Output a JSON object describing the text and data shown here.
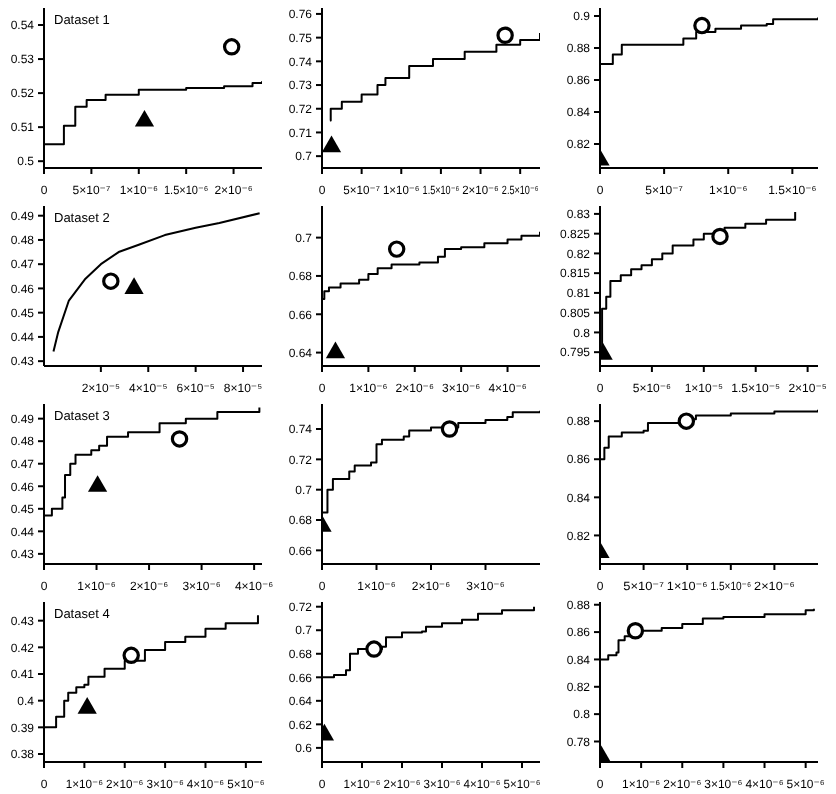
{
  "chart_data": [
    {
      "type": "line",
      "annotations": [
        "Dataset 1"
      ],
      "xlim": [
        0,
        2.3e-06
      ],
      "xticks": [
        {
          "value": 0,
          "label": "0"
        },
        {
          "value": 5e-07,
          "label": "5×10⁻⁷"
        },
        {
          "value": 1e-06,
          "label": "1×10⁻⁶"
        },
        {
          "value": 1.5e-06,
          "label": "1.5×10⁻⁶"
        },
        {
          "value": 2e-06,
          "label": "2×10⁻⁶"
        }
      ],
      "ylim": [
        0.498,
        0.545
      ],
      "yticks": [
        0.5,
        0.51,
        0.52,
        0.53,
        0.54
      ],
      "series": [
        {
          "type": "step",
          "color": "#000000",
          "marker": "none",
          "x": [
            0,
            2.1e-07,
            3.3e-07,
            4.5e-07,
            6.5e-07,
            1e-06,
            1.5e-06,
            1.9e-06,
            2.2e-06,
            2.3e-06
          ],
          "values": [
            0.505,
            0.5104,
            0.516,
            0.518,
            0.5195,
            0.521,
            0.5215,
            0.522,
            0.523,
            0.5235
          ]
        },
        {
          "type": "scatter",
          "color": "#000000",
          "marker": "circle",
          "x": [
            1.98e-06
          ],
          "values": [
            0.5336
          ]
        },
        {
          "type": "scatter",
          "color": "#000000",
          "marker": "triangle",
          "x": [
            1.06e-06
          ],
          "values": [
            0.5118
          ]
        }
      ]
    },
    {
      "type": "line",
      "xlim": [
        0,
        2.75e-06
      ],
      "xticks": [
        {
          "value": 0,
          "label": "0"
        },
        {
          "value": 5e-07,
          "label": "5×10⁻⁷"
        },
        {
          "value": 1e-06,
          "label": "1×10⁻⁶"
        },
        {
          "value": 1.5e-06,
          "label": "1.5×10⁻⁶"
        },
        {
          "value": 2e-06,
          "label": "2×10⁻⁶"
        },
        {
          "value": 2.5e-06,
          "label": "2.5×10⁻⁶"
        }
      ],
      "ylim": [
        0.695,
        0.7625
      ],
      "yticks": [
        0.7,
        0.71,
        0.72,
        0.73,
        0.74,
        0.75,
        0.76
      ],
      "series": [
        {
          "type": "step",
          "color": "#000000",
          "marker": "none",
          "x": [
            1e-07,
            1.1e-07,
            2.5e-07,
            5e-07,
            7e-07,
            8e-07,
            1.1e-06,
            1.4e-06,
            1.8e-06,
            2.2e-06,
            2.5e-06,
            2.75e-06
          ],
          "values": [
            0.715,
            0.72,
            0.723,
            0.726,
            0.73,
            0.733,
            0.738,
            0.741,
            0.744,
            0.747,
            0.749,
            0.752
          ]
        },
        {
          "type": "scatter",
          "color": "#000000",
          "marker": "circle",
          "x": [
            2.31e-06
          ],
          "values": [
            0.751
          ]
        },
        {
          "type": "scatter",
          "color": "#000000",
          "marker": "triangle",
          "x": [
            1.2e-07
          ],
          "values": [
            0.704
          ]
        }
      ]
    },
    {
      "type": "line",
      "xlim": [
        0,
        1.7e-06
      ],
      "xticks": [
        {
          "value": 0,
          "label": "0"
        },
        {
          "value": 5e-07,
          "label": "5×10⁻⁷"
        },
        {
          "value": 1e-06,
          "label": "1×10⁻⁶"
        },
        {
          "value": 1.5e-06,
          "label": "1.5×10⁻⁶"
        }
      ],
      "ylim": [
        0.805,
        0.905
      ],
      "yticks": [
        0.82,
        0.84,
        0.86,
        0.88,
        0.9
      ],
      "series": [
        {
          "type": "step",
          "color": "#000000",
          "marker": "none",
          "x": [
            0,
            1e-07,
            1.7e-07,
            6.5e-07,
            7.5e-07,
            9e-07,
            1.1e-06,
            1.3e-06,
            1.35e-06,
            1.7e-06
          ],
          "values": [
            0.87,
            0.876,
            0.882,
            0.886,
            0.89,
            0.892,
            0.894,
            0.895,
            0.898,
            0.899
          ]
        },
        {
          "type": "scatter",
          "color": "#000000",
          "marker": "circle",
          "x": [
            7.95e-07
          ],
          "values": [
            0.894
          ]
        },
        {
          "type": "scatter",
          "color": "#000000",
          "marker": "triangle",
          "x": [
            0
          ],
          "values": [
            0.81
          ]
        }
      ]
    },
    {
      "type": "line",
      "annotations": [
        "Dataset 2"
      ],
      "xlim": [
        -4e-06,
        8.8e-05
      ],
      "xticks": [
        {
          "value": 2e-05,
          "label": "2×10⁻⁵"
        },
        {
          "value": 4e-05,
          "label": "4×10⁻⁵"
        },
        {
          "value": 6e-05,
          "label": "6×10⁻⁵"
        },
        {
          "value": 8e-05,
          "label": "8×10⁻⁵"
        }
      ],
      "ylim": [
        0.428,
        0.494
      ],
      "yticks": [
        0.43,
        0.44,
        0.45,
        0.46,
        0.47,
        0.48,
        0.49
      ],
      "series": [
        {
          "type": "line",
          "color": "#000000",
          "marker": "none",
          "x": [
            0,
            2e-06,
            6.5e-06,
            1.35e-05,
            2e-05,
            2.75e-05,
            3.6e-05,
            4.7e-05,
            6e-05,
            7e-05,
            8.7e-05
          ],
          "values": [
            0.434,
            0.442,
            0.455,
            0.464,
            0.47,
            0.475,
            0.478,
            0.482,
            0.485,
            0.487,
            0.491
          ]
        },
        {
          "type": "scatter",
          "color": "#000000",
          "marker": "circle",
          "x": [
            2.42e-05
          ],
          "values": [
            0.463
          ]
        },
        {
          "type": "scatter",
          "color": "#000000",
          "marker": "triangle",
          "x": [
            3.4e-05
          ],
          "values": [
            0.46
          ]
        }
      ]
    },
    {
      "type": "line",
      "xlim": [
        0,
        4.7e-06
      ],
      "xticks": [
        {
          "value": 0,
          "label": "0"
        },
        {
          "value": 1e-06,
          "label": "1×10⁻⁶"
        },
        {
          "value": 2e-06,
          "label": "2×10⁻⁶"
        },
        {
          "value": 3e-06,
          "label": "3×10⁻⁶"
        },
        {
          "value": 4e-06,
          "label": "4×10⁻⁶"
        }
      ],
      "ylim": [
        0.633,
        0.7165
      ],
      "yticks": [
        0.64,
        0.66,
        0.68,
        0.7
      ],
      "series": [
        {
          "type": "step",
          "color": "#000000",
          "marker": "none",
          "x": [
            0,
            5e-08,
            1.5e-07,
            4e-07,
            8e-07,
            1e-06,
            1.2e-06,
            1.5e-06,
            2.1e-06,
            2.5e-06,
            2.65e-06,
            3e-06,
            3.5e-06,
            4e-06,
            4.3e-06,
            4.7e-06
          ],
          "values": [
            0.668,
            0.672,
            0.674,
            0.676,
            0.678,
            0.681,
            0.684,
            0.686,
            0.687,
            0.69,
            0.694,
            0.695,
            0.697,
            0.699,
            0.701,
            0.703
          ]
        },
        {
          "type": "scatter",
          "color": "#000000",
          "marker": "circle",
          "x": [
            1.61e-06
          ],
          "values": [
            0.694
          ]
        },
        {
          "type": "scatter",
          "color": "#000000",
          "marker": "triangle",
          "x": [
            2.9e-07
          ],
          "values": [
            0.64
          ]
        }
      ]
    },
    {
      "type": "line",
      "xlim": [
        0,
        2.1e-05
      ],
      "xticks": [
        {
          "value": 0,
          "label": "0"
        },
        {
          "value": 5e-06,
          "label": "5×10⁻⁶"
        },
        {
          "value": 1e-05,
          "label": "1×10⁻⁵"
        },
        {
          "value": 1.5e-05,
          "label": "1.5×10⁻⁵"
        },
        {
          "value": 2e-05,
          "label": "2×10⁻⁵"
        }
      ],
      "ylim": [
        0.7915,
        0.832
      ],
      "yticks": [
        0.795,
        0.8,
        0.805,
        0.81,
        0.815,
        0.82,
        0.825,
        0.83
      ],
      "series": [
        {
          "type": "step",
          "color": "#000000",
          "marker": "none",
          "x": [
            0,
            2e-07,
            6e-07,
            1e-06,
            2e-06,
            3e-06,
            4e-06,
            5e-06,
            6e-06,
            7e-06,
            9e-06,
            1e-05,
            1.2e-05,
            1.4e-05,
            1.6e-05,
            1.88e-05
          ],
          "values": [
            0.794,
            0.806,
            0.809,
            0.813,
            0.8145,
            0.816,
            0.817,
            0.8185,
            0.82,
            0.822,
            0.8235,
            0.825,
            0.8265,
            0.8275,
            0.8285,
            0.8305
          ]
        },
        {
          "type": "scatter",
          "color": "#000000",
          "marker": "circle",
          "x": [
            1.156e-05
          ],
          "values": [
            0.8243
          ]
        },
        {
          "type": "scatter",
          "color": "#000000",
          "marker": "triangle",
          "x": [
            3e-07
          ],
          "values": [
            0.7945
          ]
        }
      ]
    },
    {
      "type": "line",
      "annotations": [
        "Dataset 3"
      ],
      "xlim": [
        0,
        4.15e-06
      ],
      "xticks": [
        {
          "value": 0,
          "label": "0"
        },
        {
          "value": 1e-06,
          "label": "1×10⁻⁶"
        },
        {
          "value": 2e-06,
          "label": "2×10⁻⁶"
        },
        {
          "value": 3e-06,
          "label": "3×10⁻⁶"
        },
        {
          "value": 4e-06,
          "label": "4×10⁻⁶"
        }
      ],
      "ylim": [
        0.4255,
        0.4965
      ],
      "yticks": [
        0.43,
        0.44,
        0.45,
        0.46,
        0.47,
        0.48,
        0.49
      ],
      "series": [
        {
          "type": "step",
          "color": "#000000",
          "marker": "none",
          "x": [
            0,
            1.5e-07,
            3.5e-07,
            4e-07,
            5e-07,
            6e-07,
            9e-07,
            1.05e-06,
            1.2e-06,
            1.6e-06,
            2.2e-06,
            2.7e-06,
            3.3e-06,
            4.1e-06
          ],
          "values": [
            0.447,
            0.45,
            0.455,
            0.465,
            0.47,
            0.474,
            0.476,
            0.478,
            0.482,
            0.484,
            0.488,
            0.49,
            0.493,
            0.495
          ]
        },
        {
          "type": "scatter",
          "color": "#000000",
          "marker": "circle",
          "x": [
            2.58e-06
          ],
          "values": [
            0.481
          ]
        },
        {
          "type": "scatter",
          "color": "#000000",
          "marker": "triangle",
          "x": [
            1.02e-06
          ],
          "values": [
            0.46
          ]
        }
      ]
    },
    {
      "type": "line",
      "xlim": [
        0,
        4e-06
      ],
      "xticks": [
        {
          "value": 0,
          "label": "0"
        },
        {
          "value": 1e-06,
          "label": "1×10⁻⁶"
        },
        {
          "value": 2e-06,
          "label": "2×10⁻⁶"
        },
        {
          "value": 3e-06,
          "label": "3×10⁻⁶"
        }
      ],
      "ylim": [
        0.651,
        0.7565
      ],
      "yticks": [
        0.66,
        0.68,
        0.7,
        0.72,
        0.74
      ],
      "series": [
        {
          "type": "step",
          "color": "#000000",
          "marker": "none",
          "x": [
            0,
            1e-07,
            2e-07,
            5e-07,
            6e-07,
            9e-07,
            1e-06,
            1.1e-06,
            1.5e-06,
            1.6e-06,
            2e-06,
            2.5e-06,
            3e-06,
            3.4e-06,
            3.5e-06,
            4e-06
          ],
          "values": [
            0.685,
            0.7,
            0.707,
            0.712,
            0.716,
            0.718,
            0.73,
            0.733,
            0.735,
            0.739,
            0.741,
            0.744,
            0.746,
            0.748,
            0.751,
            0.752
          ]
        },
        {
          "type": "scatter",
          "color": "#000000",
          "marker": "circle",
          "x": [
            2.34e-06
          ],
          "values": [
            0.74
          ]
        },
        {
          "type": "scatter",
          "color": "#000000",
          "marker": "triangle",
          "x": [
            0
          ],
          "values": [
            0.676
          ]
        }
      ]
    },
    {
      "type": "line",
      "xlim": [
        0,
        2.5e-06
      ],
      "xticks": [
        {
          "value": 0,
          "label": "0"
        },
        {
          "value": 5e-07,
          "label": "5×10⁻⁷"
        },
        {
          "value": 1e-06,
          "label": "1×10⁻⁶"
        },
        {
          "value": 1.5e-06,
          "label": "1.5×10⁻⁶"
        },
        {
          "value": 2e-06,
          "label": "2×10⁻⁶"
        }
      ],
      "ylim": [
        0.805,
        0.889
      ],
      "yticks": [
        0.82,
        0.84,
        0.86,
        0.88
      ],
      "series": [
        {
          "type": "step",
          "color": "#000000",
          "marker": "none",
          "x": [
            0,
            5e-08,
            1e-07,
            2.5e-07,
            5e-07,
            5.5e-07,
            1e-06,
            1.1e-06,
            1.5e-06,
            2e-06,
            2.5e-06
          ],
          "values": [
            0.86,
            0.866,
            0.872,
            0.874,
            0.875,
            0.879,
            0.881,
            0.883,
            0.884,
            0.885,
            0.886
          ]
        },
        {
          "type": "scatter",
          "color": "#000000",
          "marker": "circle",
          "x": [
            9.9e-07
          ],
          "values": [
            0.88
          ]
        },
        {
          "type": "scatter",
          "color": "#000000",
          "marker": "triangle",
          "x": [
            0
          ],
          "values": [
            0.811
          ]
        }
      ]
    },
    {
      "type": "line",
      "annotations": [
        "Dataset 4"
      ],
      "xlim": [
        0,
        5.4e-06
      ],
      "xticks": [
        {
          "value": 0,
          "label": "0"
        },
        {
          "value": 1e-06,
          "label": "1×10⁻⁶"
        },
        {
          "value": 2e-06,
          "label": "2×10⁻⁶"
        },
        {
          "value": 3e-06,
          "label": "3×10⁻⁶"
        },
        {
          "value": 4e-06,
          "label": "4×10⁻⁶"
        },
        {
          "value": 5e-06,
          "label": "5×10⁻⁶"
        }
      ],
      "ylim": [
        0.377,
        0.437
      ],
      "yticks": [
        0.38,
        0.39,
        0.4,
        0.41,
        0.42,
        0.43
      ],
      "series": [
        {
          "type": "step",
          "color": "#000000",
          "marker": "none",
          "x": [
            0,
            1e-07,
            3e-07,
            5e-07,
            6e-07,
            8e-07,
            1e-06,
            1.1e-06,
            1.5e-06,
            2e-06,
            2.5e-06,
            3e-06,
            3.5e-06,
            4e-06,
            4.5e-06,
            5.3e-06
          ],
          "values": [
            0.39,
            0.39,
            0.394,
            0.4,
            0.403,
            0.405,
            0.406,
            0.409,
            0.412,
            0.415,
            0.419,
            0.422,
            0.424,
            0.427,
            0.429,
            0.432
          ]
        },
        {
          "type": "scatter",
          "color": "#000000",
          "marker": "circle",
          "x": [
            2.16e-06
          ],
          "values": [
            0.417
          ]
        },
        {
          "type": "scatter",
          "color": "#000000",
          "marker": "triangle",
          "x": [
            1.07e-06
          ],
          "values": [
            0.3972
          ]
        }
      ]
    },
    {
      "type": "line",
      "xlim": [
        0,
        5.45e-06
      ],
      "xticks": [
        {
          "value": 0,
          "label": "0"
        },
        {
          "value": 1e-06,
          "label": "1×10⁻⁶"
        },
        {
          "value": 2e-06,
          "label": "2×10⁻⁶"
        },
        {
          "value": 3e-06,
          "label": "3×10⁻⁶"
        },
        {
          "value": 4e-06,
          "label": "4×10⁻⁶"
        },
        {
          "value": 5e-06,
          "label": "5×10⁻⁶"
        }
      ],
      "ylim": [
        0.588,
        0.724
      ],
      "yticks": [
        0.6,
        0.62,
        0.64,
        0.66,
        0.68,
        0.7,
        0.72
      ],
      "series": [
        {
          "type": "step",
          "color": "#000000",
          "marker": "none",
          "x": [
            0,
            3e-07,
            6e-07,
            7e-07,
            9e-07,
            1.5e-06,
            1.6e-06,
            2e-06,
            2.5e-06,
            2.6e-06,
            3e-06,
            3.5e-06,
            3.9e-06,
            4.5e-06,
            5.3e-06
          ],
          "values": [
            0.66,
            0.662,
            0.666,
            0.68,
            0.684,
            0.686,
            0.694,
            0.698,
            0.699,
            0.703,
            0.706,
            0.709,
            0.714,
            0.717,
            0.72
          ]
        },
        {
          "type": "scatter",
          "color": "#000000",
          "marker": "circle",
          "x": [
            1.3e-06
          ],
          "values": [
            0.684
          ]
        },
        {
          "type": "scatter",
          "color": "#000000",
          "marker": "triangle",
          "x": [
            6e-08
          ],
          "values": [
            0.611
          ]
        }
      ]
    },
    {
      "type": "line",
      "xlim": [
        0,
        5.3e-06
      ],
      "xticks": [
        {
          "value": 0,
          "label": "0"
        },
        {
          "value": 1e-06,
          "label": "1×10⁻⁶"
        },
        {
          "value": 2e-06,
          "label": "2×10⁻⁶"
        },
        {
          "value": 3e-06,
          "label": "3×10⁻⁶"
        },
        {
          "value": 4e-06,
          "label": "4×10⁻⁶"
        },
        {
          "value": 5e-06,
          "label": "5×10⁻⁶"
        }
      ],
      "ylim": [
        0.765,
        0.882
      ],
      "yticks": [
        0.78,
        0.8,
        0.82,
        0.84,
        0.86,
        0.88
      ],
      "series": [
        {
          "type": "step",
          "color": "#000000",
          "marker": "none",
          "x": [
            0,
            2e-07,
            4e-07,
            4.5e-07,
            6e-07,
            1e-06,
            1.5e-06,
            2e-06,
            2.5e-06,
            3e-06,
            4e-06,
            5e-06,
            5.2e-06
          ],
          "values": [
            0.84,
            0.843,
            0.845,
            0.854,
            0.857,
            0.861,
            0.863,
            0.866,
            0.87,
            0.871,
            0.873,
            0.876,
            0.877
          ]
        },
        {
          "type": "scatter",
          "color": "#000000",
          "marker": "circle",
          "x": [
            8.6e-07
          ],
          "values": [
            0.861
          ]
        },
        {
          "type": "scatter",
          "color": "#000000",
          "marker": "triangle",
          "x": [
            3e-08
          ],
          "values": [
            0.769
          ]
        }
      ]
    }
  ]
}
